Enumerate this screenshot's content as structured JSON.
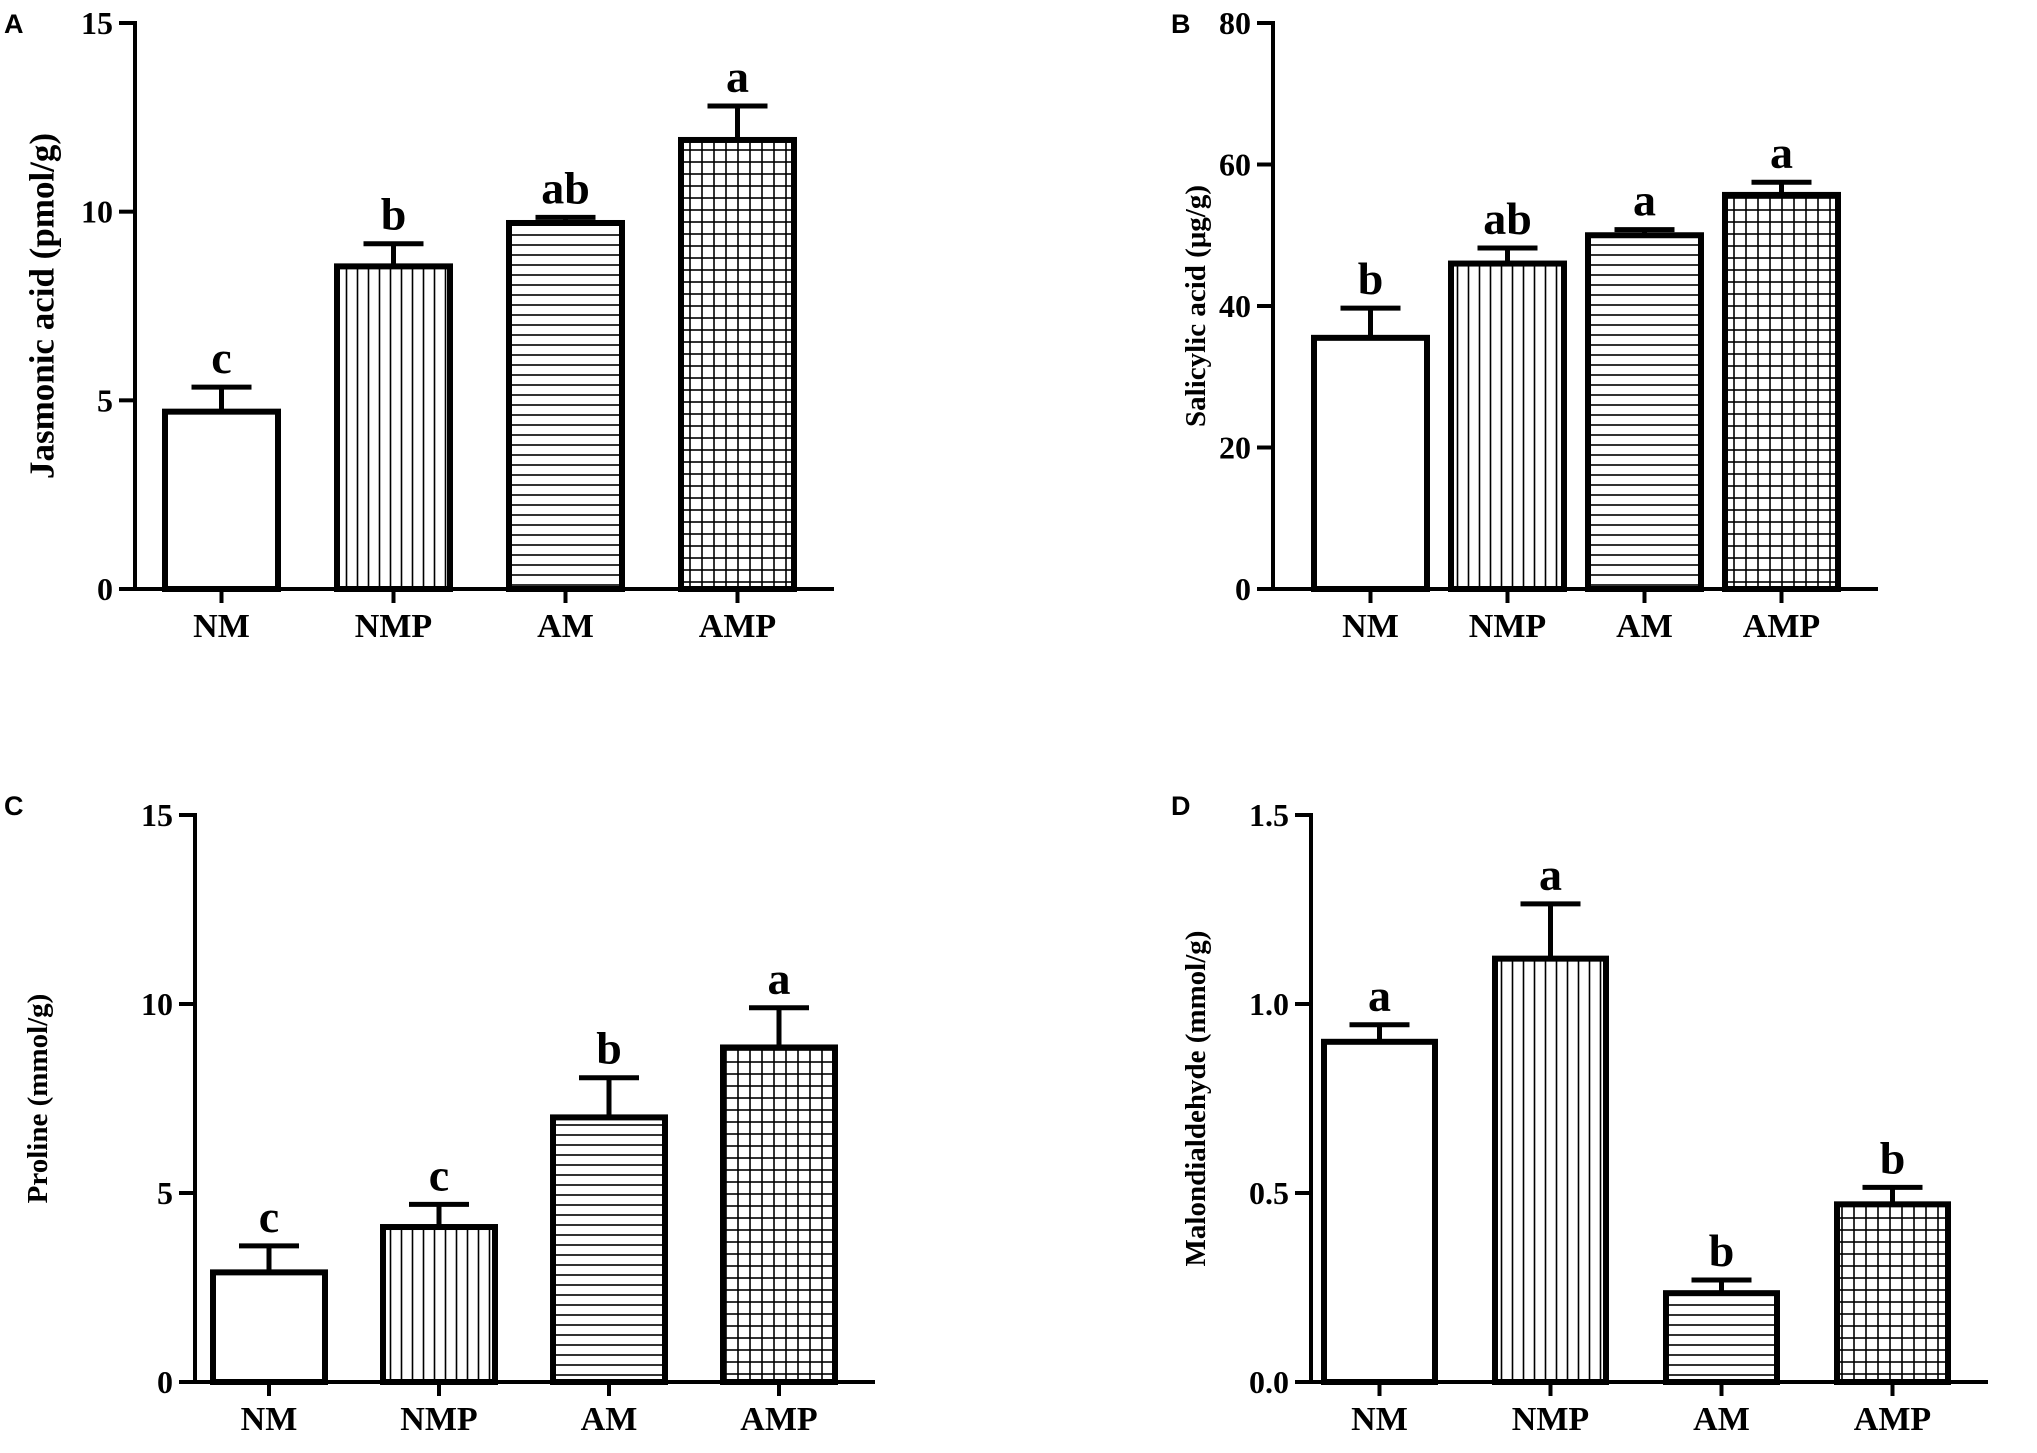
{
  "chart_data": [
    {
      "panel": "A",
      "type": "bar",
      "categories": [
        "NM",
        "NMP",
        "AM",
        "AMP"
      ],
      "values": [
        4.7,
        8.55,
        9.7,
        11.9
      ],
      "errors": [
        0.65,
        0.6,
        0.15,
        0.9
      ],
      "significance": [
        "c",
        "b",
        "ab",
        "a"
      ],
      "patterns": [
        "none",
        "vertical",
        "horizontal",
        "grid"
      ],
      "ylabel": "Jasmonic acid (pmol/g)",
      "ylim": [
        0,
        15
      ],
      "yticks": [
        "0",
        "5",
        "10",
        "15"
      ]
    },
    {
      "panel": "B",
      "type": "bar",
      "categories": [
        "NM",
        "NMP",
        "AM",
        "AMP"
      ],
      "values": [
        35.5,
        46,
        50,
        55.7
      ],
      "errors": [
        4.2,
        2.2,
        0.8,
        1.8
      ],
      "significance": [
        "b",
        "ab",
        "a",
        "a"
      ],
      "patterns": [
        "none",
        "vertical",
        "horizontal",
        "grid"
      ],
      "ylabel": "Salicylic acid (μg/g)",
      "ylim": [
        0,
        80
      ],
      "yticks": [
        "0",
        "20",
        "40",
        "60",
        "80"
      ]
    },
    {
      "panel": "C",
      "type": "bar",
      "categories": [
        "NM",
        "NMP",
        "AM",
        "AMP"
      ],
      "values": [
        2.9,
        4.1,
        7.0,
        8.85
      ],
      "errors": [
        0.7,
        0.6,
        1.05,
        1.05
      ],
      "significance": [
        "c",
        "c",
        "b",
        "a"
      ],
      "patterns": [
        "none",
        "vertical",
        "horizontal",
        "grid"
      ],
      "ylabel": "Proline (mmol/g)",
      "ylim": [
        0,
        15
      ],
      "yticks": [
        "0",
        "5",
        "10",
        "15"
      ]
    },
    {
      "panel": "D",
      "type": "bar",
      "categories": [
        "NM",
        "NMP",
        "AM",
        "AMP"
      ],
      "values": [
        0.9,
        1.12,
        0.235,
        0.47
      ],
      "errors": [
        0.045,
        0.145,
        0.035,
        0.045
      ],
      "significance": [
        "a",
        "a",
        "b",
        "b"
      ],
      "patterns": [
        "none",
        "vertical",
        "horizontal",
        "grid"
      ],
      "ylabel": "Malondialdehyde (mmol/g)",
      "ylim": [
        0,
        1.5
      ],
      "yticks": [
        "0.0",
        "0.5",
        "1.0",
        "1.5"
      ]
    }
  ]
}
